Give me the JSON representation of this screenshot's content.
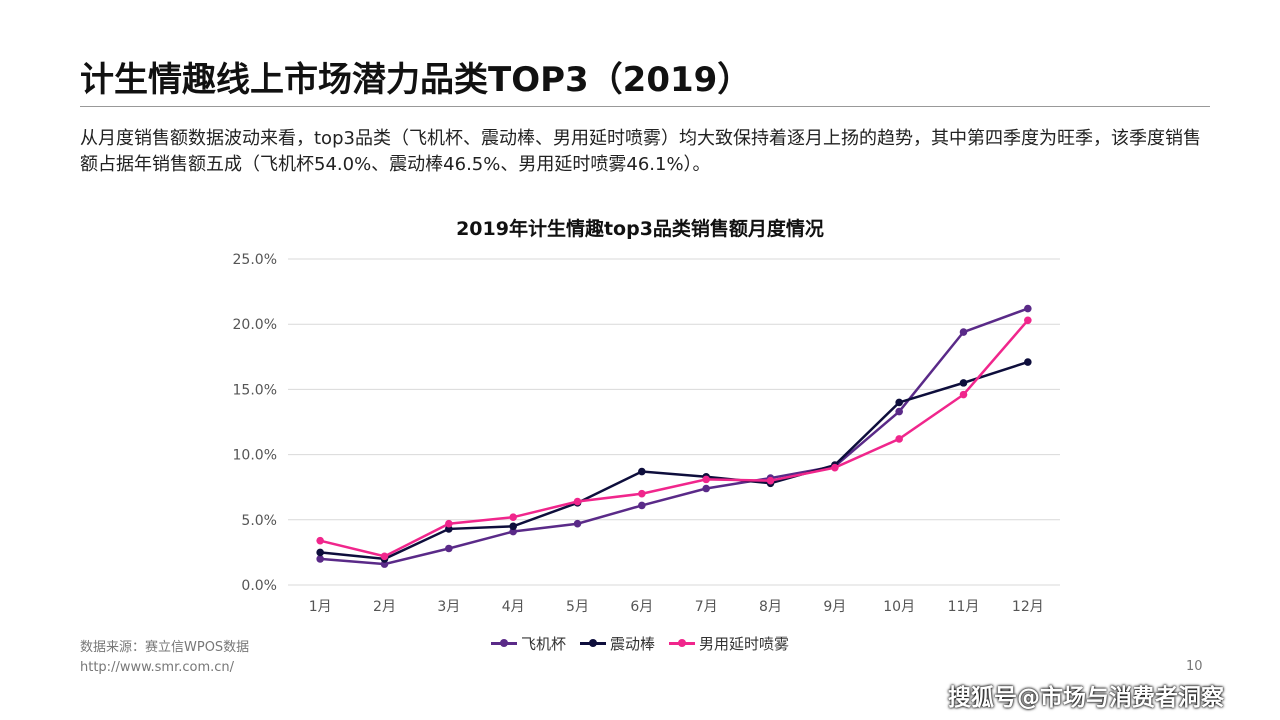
{
  "title": "计生情趣线上市场潜力品类TOP3（2019）",
  "description": "从月度销售额数据波动来看，top3品类（飞机杯、震动棒、男用延时喷雾）均大致保持着逐月上扬的趋势，其中第四季度为旺季，该季度销售额占据年销售额五成（飞机杯54.0%、震动棒46.5%、男用延时喷雾46.1%）。",
  "source": "数据来源：赛立信WPOS数据",
  "url": "http://www.smr.com.cn/",
  "page_number": "10",
  "watermark": "搜狐号@市场与消费者洞察",
  "chart_data": {
    "type": "line",
    "title": "2019年计生情趣top3品类销售额月度情况",
    "categories": [
      "1月",
      "2月",
      "3月",
      "4月",
      "5月",
      "6月",
      "7月",
      "8月",
      "9月",
      "10月",
      "11月",
      "12月"
    ],
    "ylim": [
      0,
      25
    ],
    "yticks": [
      "0.0%",
      "5.0%",
      "10.0%",
      "15.0%",
      "20.0%",
      "25.0%"
    ],
    "grid": true,
    "legend": "bottom",
    "series": [
      {
        "name": "飞机杯",
        "color": "#5a2a88",
        "values": [
          2.0,
          1.6,
          2.8,
          4.1,
          4.7,
          6.1,
          7.4,
          8.2,
          9.1,
          13.3,
          19.4,
          21.2
        ]
      },
      {
        "name": "震动棒",
        "color": "#0e0e3c",
        "values": [
          2.5,
          2.0,
          4.3,
          4.5,
          6.3,
          8.7,
          8.3,
          7.8,
          9.2,
          14.0,
          15.5,
          17.1
        ]
      },
      {
        "name": "男用延时喷雾",
        "color": "#f0268c",
        "values": [
          3.4,
          2.2,
          4.7,
          5.2,
          6.4,
          7.0,
          8.1,
          8.0,
          9.0,
          11.2,
          14.6,
          20.3
        ]
      }
    ]
  }
}
